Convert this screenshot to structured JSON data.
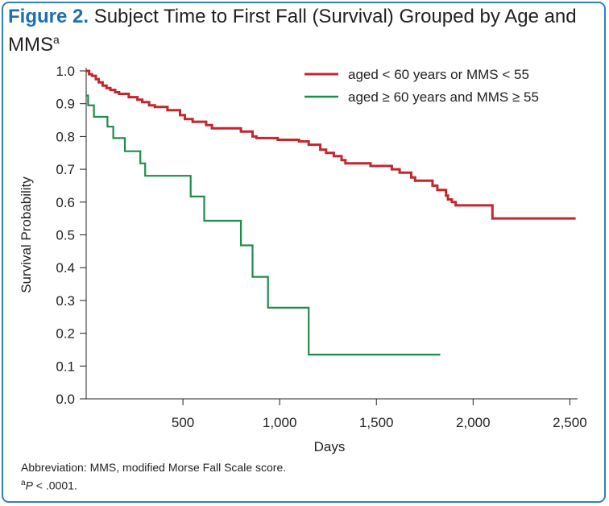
{
  "figure": {
    "label": "Figure 2.",
    "title": "Subject Time to First Fall (Survival) Grouped by Age and MMS",
    "title_sup": "a"
  },
  "footnotes": {
    "abbrev": "Abbreviation: MMS, modified Morse Fall Scale score.",
    "sup": "a",
    "p_italic": "P",
    "p_rest": " < .0001."
  },
  "colors": {
    "frame": "#2e7fc0",
    "figure_label": "#1b6fb3",
    "series1": "#c1272d",
    "series2": "#1e8c4a",
    "text": "#231f20"
  },
  "chart_data": {
    "type": "line",
    "subtype": "step",
    "title": "",
    "xlabel": "Days",
    "ylabel": "Survival Probability",
    "xlim": [
      0,
      2540
    ],
    "ylim": [
      0,
      1.0
    ],
    "xticks": [
      500,
      1000,
      1500,
      2000,
      2500
    ],
    "xtick_labels": [
      "500",
      "1,000",
      "1,500",
      "2,000",
      "2,500"
    ],
    "yticks": [
      0,
      0.1,
      0.2,
      0.3,
      0.4,
      0.5,
      0.6,
      0.7,
      0.8,
      0.9,
      1.0
    ],
    "ytick_labels": [
      "0.0",
      "0.1",
      "0.2",
      "0.3",
      "0.4",
      "0.5",
      "0.6",
      "0.7",
      "0.8",
      "0.9",
      "1.0"
    ],
    "grid": false,
    "legend_position": "top-right",
    "series": [
      {
        "name": "aged < 60 years or MMS < 55",
        "color": "#c1272d",
        "points": [
          [
            0,
            1.0
          ],
          [
            15,
            0.99
          ],
          [
            30,
            0.985
          ],
          [
            50,
            0.975
          ],
          [
            65,
            0.965
          ],
          [
            85,
            0.955
          ],
          [
            105,
            0.948
          ],
          [
            125,
            0.942
          ],
          [
            150,
            0.935
          ],
          [
            170,
            0.93
          ],
          [
            220,
            0.92
          ],
          [
            265,
            0.912
          ],
          [
            290,
            0.905
          ],
          [
            325,
            0.895
          ],
          [
            355,
            0.89
          ],
          [
            420,
            0.88
          ],
          [
            485,
            0.865
          ],
          [
            510,
            0.853
          ],
          [
            550,
            0.845
          ],
          [
            620,
            0.835
          ],
          [
            650,
            0.825
          ],
          [
            790,
            0.825
          ],
          [
            800,
            0.815
          ],
          [
            860,
            0.8
          ],
          [
            880,
            0.795
          ],
          [
            990,
            0.79
          ],
          [
            1060,
            0.79
          ],
          [
            1100,
            0.785
          ],
          [
            1150,
            0.775
          ],
          [
            1210,
            0.76
          ],
          [
            1240,
            0.75
          ],
          [
            1280,
            0.74
          ],
          [
            1320,
            0.728
          ],
          [
            1340,
            0.718
          ],
          [
            1470,
            0.71
          ],
          [
            1580,
            0.7
          ],
          [
            1620,
            0.69
          ],
          [
            1680,
            0.675
          ],
          [
            1700,
            0.665
          ],
          [
            1790,
            0.65
          ],
          [
            1815,
            0.637
          ],
          [
            1860,
            0.62
          ],
          [
            1870,
            0.608
          ],
          [
            1890,
            0.6
          ],
          [
            1910,
            0.59
          ],
          [
            2100,
            0.55
          ],
          [
            2530,
            0.55
          ]
        ]
      },
      {
        "name": "aged ≥ 60 years and MMS ≥ 55",
        "color": "#1e8c4a",
        "points": [
          [
            0,
            0.925
          ],
          [
            10,
            0.895
          ],
          [
            40,
            0.86
          ],
          [
            110,
            0.83
          ],
          [
            140,
            0.795
          ],
          [
            200,
            0.755
          ],
          [
            280,
            0.718
          ],
          [
            305,
            0.68
          ],
          [
            540,
            0.617
          ],
          [
            610,
            0.543
          ],
          [
            800,
            0.468
          ],
          [
            860,
            0.372
          ],
          [
            940,
            0.278
          ],
          [
            1150,
            0.135
          ],
          [
            1830,
            0.135
          ]
        ]
      }
    ]
  }
}
